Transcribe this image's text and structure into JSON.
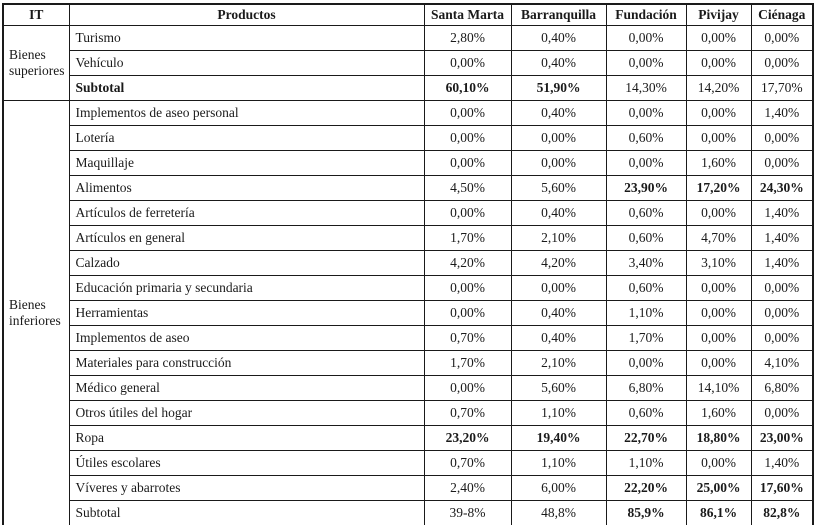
{
  "page": {
    "background": "#ffffff",
    "text_color": "#1a1a1a",
    "border_color": "#1a1a1a"
  },
  "table": {
    "columns": [
      "IT",
      "Productos",
      "Santa Marta",
      "Barranquilla",
      "Fundación",
      "Pivijay",
      "Ciénaga"
    ],
    "groups": [
      {
        "label": "Bienes superiores",
        "rows": [
          {
            "product": "Turismo",
            "bold_label": false,
            "values": [
              "2,80%",
              "0,40%",
              "0,00%",
              "0,00%",
              "0,00%"
            ],
            "bold_cols": []
          },
          {
            "product": "Vehículo",
            "bold_label": false,
            "values": [
              "0,00%",
              "0,40%",
              "0,00%",
              "0,00%",
              "0,00%"
            ],
            "bold_cols": []
          },
          {
            "product": "Subtotal",
            "bold_label": true,
            "values": [
              "60,10%",
              "51,90%",
              "14,30%",
              "14,20%",
              "17,70%"
            ],
            "bold_cols": [
              0,
              1
            ]
          }
        ]
      },
      {
        "label": "Bienes inferiores",
        "rows": [
          {
            "product": "Implementos de aseo personal",
            "bold_label": false,
            "values": [
              "0,00%",
              "0,40%",
              "0,00%",
              "0,00%",
              "1,40%"
            ],
            "bold_cols": []
          },
          {
            "product": "Lotería",
            "bold_label": false,
            "values": [
              "0,00%",
              "0,00%",
              "0,60%",
              "0,00%",
              "0,00%"
            ],
            "bold_cols": []
          },
          {
            "product": "Maquillaje",
            "bold_label": false,
            "values": [
              "0,00%",
              "0,00%",
              "0,00%",
              "1,60%",
              "0,00%"
            ],
            "bold_cols": []
          },
          {
            "product": "Alimentos",
            "bold_label": false,
            "values": [
              "4,50%",
              "5,60%",
              "23,90%",
              "17,20%",
              "24,30%"
            ],
            "bold_cols": [
              2,
              3,
              4
            ]
          },
          {
            "product": "Artículos de ferretería",
            "bold_label": false,
            "values": [
              "0,00%",
              "0,40%",
              "0,60%",
              "0,00%",
              "1,40%"
            ],
            "bold_cols": []
          },
          {
            "product": "Artículos en general",
            "bold_label": false,
            "values": [
              "1,70%",
              "2,10%",
              "0,60%",
              "4,70%",
              "1,40%"
            ],
            "bold_cols": []
          },
          {
            "product": "Calzado",
            "bold_label": false,
            "values": [
              "4,20%",
              "4,20%",
              "3,40%",
              "3,10%",
              "1,40%"
            ],
            "bold_cols": []
          },
          {
            "product": "Educación primaria y secundaria",
            "bold_label": false,
            "values": [
              "0,00%",
              "0,00%",
              "0,60%",
              "0,00%",
              "0,00%"
            ],
            "bold_cols": []
          },
          {
            "product": "Herramientas",
            "bold_label": false,
            "values": [
              "0,00%",
              "0,40%",
              "1,10%",
              "0,00%",
              "0,00%"
            ],
            "bold_cols": []
          },
          {
            "product": "Implementos de aseo",
            "bold_label": false,
            "values": [
              "0,70%",
              "0,40%",
              "1,70%",
              "0,00%",
              "0,00%"
            ],
            "bold_cols": []
          },
          {
            "product": "Materiales para construcción",
            "bold_label": false,
            "values": [
              "1,70%",
              "2,10%",
              "0,00%",
              "0,00%",
              "4,10%"
            ],
            "bold_cols": []
          },
          {
            "product": "Médico general",
            "bold_label": false,
            "values": [
              "0,00%",
              "5,60%",
              "6,80%",
              "14,10%",
              "6,80%"
            ],
            "bold_cols": []
          },
          {
            "product": "Otros útiles del hogar",
            "bold_label": false,
            "values": [
              "0,70%",
              "1,10%",
              "0,60%",
              "1,60%",
              "0,00%"
            ],
            "bold_cols": []
          },
          {
            "product": "Ropa",
            "bold_label": false,
            "values": [
              "23,20%",
              "19,40%",
              "22,70%",
              "18,80%",
              "23,00%"
            ],
            "bold_cols": [
              0,
              1,
              2,
              3,
              4
            ]
          },
          {
            "product": "Útiles escolares",
            "bold_label": false,
            "values": [
              "0,70%",
              "1,10%",
              "1,10%",
              "0,00%",
              "1,40%"
            ],
            "bold_cols": []
          },
          {
            "product": "Víveres y abarrotes",
            "bold_label": false,
            "values": [
              "2,40%",
              "6,00%",
              "22,20%",
              "25,00%",
              "17,60%"
            ],
            "bold_cols": [
              2,
              3,
              4
            ]
          },
          {
            "product": "Subtotal",
            "bold_label": false,
            "values": [
              "39-8%",
              "48,8%",
              "85,9%",
              "86,1%",
              "82,8%"
            ],
            "bold_cols": [
              2,
              3,
              4
            ]
          }
        ]
      }
    ]
  }
}
